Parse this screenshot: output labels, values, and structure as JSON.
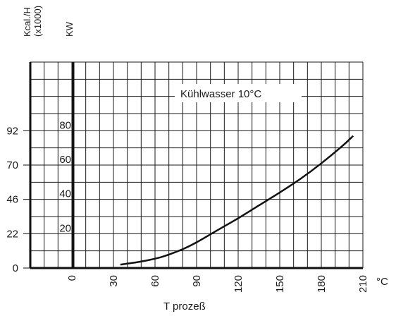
{
  "chart_data": {
    "type": "line",
    "title": "",
    "annotation": "Kühlwasser 10°C",
    "xlabel": "T prozeß",
    "x_unit": "°C",
    "y_unit_left": "Kcal./H\n(x1000)",
    "y_unit_right": "KW",
    "xlim": [
      -30,
      210
    ],
    "ylim_kw": [
      0,
      120
    ],
    "x_ticks": [
      "0",
      "30",
      "60",
      "90",
      "120",
      "150",
      "180",
      "210"
    ],
    "kcal_ticks": [
      "0",
      "22",
      "46",
      "70",
      "92"
    ],
    "kw_ticks": [
      "20",
      "40",
      "60",
      "80"
    ],
    "grid": true,
    "series": [
      {
        "x": [
          35,
          50,
          65,
          80,
          90,
          105,
          120,
          135,
          150,
          165,
          180,
          195,
          203
        ],
        "y": [
          2,
          3.8,
          6.5,
          11,
          15,
          22,
          29,
          36.5,
          44,
          52,
          61,
          71,
          77
        ]
      }
    ]
  }
}
